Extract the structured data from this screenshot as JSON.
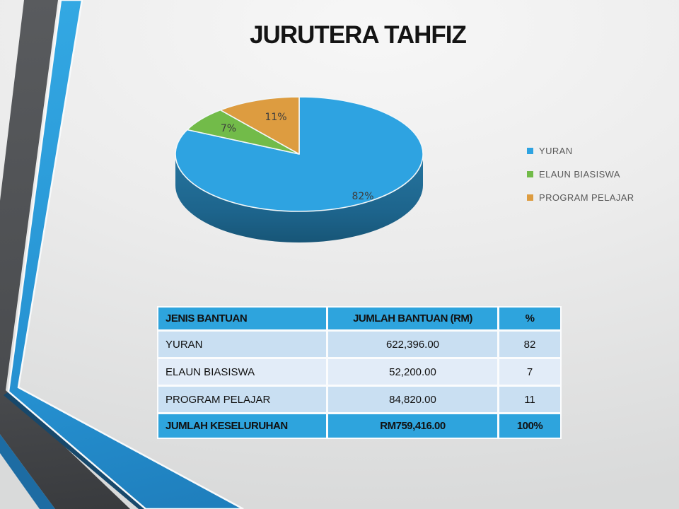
{
  "title": "JURUTERA TAHFIZ",
  "chart_data": {
    "type": "pie",
    "title": "JURUTERA TAHFIZ",
    "labels": [
      "YURAN",
      "ELAUN BIASISWA",
      "PROGRAM PELAJAR"
    ],
    "values": [
      82,
      7,
      11
    ],
    "value_labels": [
      "82%",
      "7%",
      "11%"
    ],
    "colors": [
      "#2ea3e1",
      "#72bb49",
      "#dd9c40"
    ],
    "effect": "3d",
    "start_angle_deg": 0,
    "direction": "clockwise",
    "legend_position": "right"
  },
  "table": {
    "headers": [
      "JENIS BANTUAN",
      "JUMLAH BANTUAN (RM)",
      "%"
    ],
    "rows": [
      [
        "YURAN",
        "622,396.00",
        "82"
      ],
      [
        "ELAUN BIASISWA",
        "52,200.00",
        "7"
      ],
      [
        "PROGRAM PELAJAR",
        "84,820.00",
        "11"
      ]
    ],
    "total_row": [
      "JUMLAH KESELURUHAN",
      "RM759,416.00",
      "100%"
    ]
  },
  "colors": {
    "table_header_bg": "#2ea4dd",
    "table_row_bg": "#c9dff2",
    "table_row_alt_bg": "#e2ecf8",
    "table_total_bg": "#2ea4dd",
    "pie_side": "#206b95",
    "stripe_blue": "#2ba2e0",
    "stripe_gray": "#55575a",
    "stripe_navy": "#1d6ca3",
    "legend_text": "#595959"
  }
}
